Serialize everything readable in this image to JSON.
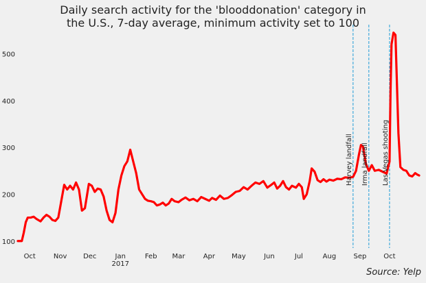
{
  "chart_data": {
    "type": "line",
    "title_lines": [
      "Daily search activity for the 'blooddonation' category in",
      "the U.S., 7-day average, minimum activity set to 100"
    ],
    "xlabel": "",
    "ylabel": "",
    "ylim": [
      85,
      565
    ],
    "y_ticks": [
      100,
      200,
      300,
      400,
      500
    ],
    "xlim": [
      "2016-09-19",
      "2017-10-31"
    ],
    "x_ticks": [
      {
        "date": "2016-10-01",
        "label": "Oct"
      },
      {
        "date": "2016-11-01",
        "label": "Nov"
      },
      {
        "date": "2016-12-01",
        "label": "Dec"
      },
      {
        "date": "2017-01-01",
        "label": "Jan",
        "sublabel": "2017"
      },
      {
        "date": "2017-02-01",
        "label": "Feb"
      },
      {
        "date": "2017-03-01",
        "label": "Mar"
      },
      {
        "date": "2017-04-01",
        "label": "Apr"
      },
      {
        "date": "2017-05-01",
        "label": "May"
      },
      {
        "date": "2017-06-01",
        "label": "Jun"
      },
      {
        "date": "2017-07-01",
        "label": "Jul"
      },
      {
        "date": "2017-08-01",
        "label": "Aug"
      },
      {
        "date": "2017-09-01",
        "label": "Sep"
      },
      {
        "date": "2017-10-01",
        "label": "Oct"
      }
    ],
    "grid": false,
    "line_color": "#ff0000",
    "event_line_color": "#1f9bd7",
    "events": [
      {
        "date": "2017-08-25",
        "label": "Harvey landfall"
      },
      {
        "date": "2017-09-10",
        "label": "Irma landfall"
      },
      {
        "date": "2017-10-01",
        "label": "Las Vegas shooting"
      }
    ],
    "series": [
      {
        "points": [
          [
            "2016-09-19",
            100
          ],
          [
            "2016-09-23",
            100
          ],
          [
            "2016-09-25",
            118
          ],
          [
            "2016-09-27",
            140
          ],
          [
            "2016-09-29",
            150
          ],
          [
            "2016-10-02",
            150
          ],
          [
            "2016-10-05",
            152
          ],
          [
            "2016-10-08",
            147
          ],
          [
            "2016-10-12",
            142
          ],
          [
            "2016-10-15",
            150
          ],
          [
            "2016-10-18",
            156
          ],
          [
            "2016-10-21",
            152
          ],
          [
            "2016-10-24",
            145
          ],
          [
            "2016-10-27",
            143
          ],
          [
            "2016-10-30",
            150
          ],
          [
            "2016-11-02",
            185
          ],
          [
            "2016-11-05",
            220
          ],
          [
            "2016-11-08",
            210
          ],
          [
            "2016-11-11",
            218
          ],
          [
            "2016-11-14",
            210
          ],
          [
            "2016-11-17",
            225
          ],
          [
            "2016-11-20",
            210
          ],
          [
            "2016-11-23",
            165
          ],
          [
            "2016-11-26",
            170
          ],
          [
            "2016-11-30",
            222
          ],
          [
            "2016-12-03",
            218
          ],
          [
            "2016-12-06",
            205
          ],
          [
            "2016-12-09",
            212
          ],
          [
            "2016-12-12",
            210
          ],
          [
            "2016-12-15",
            195
          ],
          [
            "2016-12-18",
            165
          ],
          [
            "2016-12-21",
            145
          ],
          [
            "2016-12-24",
            140
          ],
          [
            "2016-12-27",
            160
          ],
          [
            "2016-12-30",
            210
          ],
          [
            "2017-01-02",
            240
          ],
          [
            "2017-01-05",
            260
          ],
          [
            "2017-01-08",
            270
          ],
          [
            "2017-01-11",
            295
          ],
          [
            "2017-01-14",
            270
          ],
          [
            "2017-01-17",
            245
          ],
          [
            "2017-01-20",
            210
          ],
          [
            "2017-01-23",
            200
          ],
          [
            "2017-01-26",
            190
          ],
          [
            "2017-01-29",
            186
          ],
          [
            "2017-02-01",
            185
          ],
          [
            "2017-02-04",
            183
          ],
          [
            "2017-02-07",
            176
          ],
          [
            "2017-02-10",
            178
          ],
          [
            "2017-02-13",
            182
          ],
          [
            "2017-02-16",
            176
          ],
          [
            "2017-02-19",
            180
          ],
          [
            "2017-02-22",
            190
          ],
          [
            "2017-02-25",
            185
          ],
          [
            "2017-03-01",
            183
          ],
          [
            "2017-03-04",
            188
          ],
          [
            "2017-03-08",
            193
          ],
          [
            "2017-03-12",
            187
          ],
          [
            "2017-03-16",
            190
          ],
          [
            "2017-03-20",
            185
          ],
          [
            "2017-03-24",
            194
          ],
          [
            "2017-03-28",
            190
          ],
          [
            "2017-04-01",
            186
          ],
          [
            "2017-04-04",
            192
          ],
          [
            "2017-04-08",
            188
          ],
          [
            "2017-04-12",
            197
          ],
          [
            "2017-04-16",
            190
          ],
          [
            "2017-04-20",
            192
          ],
          [
            "2017-04-24",
            198
          ],
          [
            "2017-04-28",
            205
          ],
          [
            "2017-05-02",
            207
          ],
          [
            "2017-05-06",
            215
          ],
          [
            "2017-05-10",
            210
          ],
          [
            "2017-05-14",
            218
          ],
          [
            "2017-05-18",
            225
          ],
          [
            "2017-05-22",
            222
          ],
          [
            "2017-05-26",
            228
          ],
          [
            "2017-05-30",
            214
          ],
          [
            "2017-06-03",
            220
          ],
          [
            "2017-06-06",
            225
          ],
          [
            "2017-06-09",
            212
          ],
          [
            "2017-06-12",
            218
          ],
          [
            "2017-06-15",
            228
          ],
          [
            "2017-06-18",
            215
          ],
          [
            "2017-06-21",
            210
          ],
          [
            "2017-06-24",
            218
          ],
          [
            "2017-06-28",
            214
          ],
          [
            "2017-07-01",
            222
          ],
          [
            "2017-07-04",
            215
          ],
          [
            "2017-07-06",
            190
          ],
          [
            "2017-07-09",
            200
          ],
          [
            "2017-07-12",
            228
          ],
          [
            "2017-07-14",
            255
          ],
          [
            "2017-07-17",
            248
          ],
          [
            "2017-07-20",
            230
          ],
          [
            "2017-07-23",
            226
          ],
          [
            "2017-07-26",
            232
          ],
          [
            "2017-07-29",
            227
          ],
          [
            "2017-08-01",
            231
          ],
          [
            "2017-08-05",
            229
          ],
          [
            "2017-08-09",
            233
          ],
          [
            "2017-08-13",
            232
          ],
          [
            "2017-08-17",
            236
          ],
          [
            "2017-08-21",
            235
          ],
          [
            "2017-08-25",
            237
          ],
          [
            "2017-08-28",
            250
          ],
          [
            "2017-08-31",
            285
          ],
          [
            "2017-09-02",
            305
          ],
          [
            "2017-09-04",
            302
          ],
          [
            "2017-09-07",
            265
          ],
          [
            "2017-09-10",
            250
          ],
          [
            "2017-09-13",
            262
          ],
          [
            "2017-09-16",
            250
          ],
          [
            "2017-09-20",
            252
          ],
          [
            "2017-09-24",
            248
          ],
          [
            "2017-09-28",
            244
          ],
          [
            "2017-10-01",
            270
          ],
          [
            "2017-10-02",
            420
          ],
          [
            "2017-10-03",
            520
          ],
          [
            "2017-10-05",
            545
          ],
          [
            "2017-10-07",
            540
          ],
          [
            "2017-10-08",
            470
          ],
          [
            "2017-10-10",
            330
          ],
          [
            "2017-10-12",
            258
          ],
          [
            "2017-10-15",
            252
          ],
          [
            "2017-10-18",
            250
          ],
          [
            "2017-10-21",
            240
          ],
          [
            "2017-10-24",
            238
          ],
          [
            "2017-10-27",
            245
          ],
          [
            "2017-10-29",
            242
          ],
          [
            "2017-10-31",
            240
          ]
        ]
      }
    ],
    "source": "Source: Yelp"
  }
}
